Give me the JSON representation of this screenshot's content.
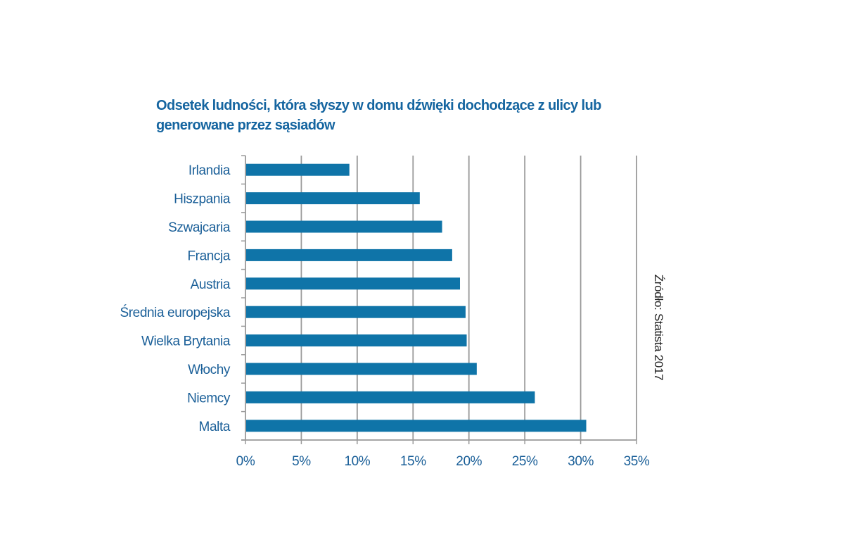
{
  "chart_data": {
    "type": "bar",
    "orientation": "horizontal",
    "title_lines": [
      "Odsetek ludności, która słyszy w domu dźwięki dochodzące z ulicy lub",
      "generowane przez sąsiadów"
    ],
    "categories": [
      "Irlandia",
      "Hiszpania",
      "Szwajcaria",
      "Francja",
      "Austria",
      "Średnia europejska",
      "Wielka Brytania",
      "Włochy",
      "Niemcy",
      "Malta"
    ],
    "values": [
      9.3,
      15.6,
      17.6,
      18.5,
      19.2,
      19.7,
      19.8,
      20.7,
      25.9,
      30.5
    ],
    "unit": "%",
    "xlim": [
      0,
      35
    ],
    "xticks": [
      0,
      5,
      10,
      15,
      20,
      25,
      30,
      35
    ],
    "xtick_labels": [
      "0%",
      "5%",
      "10%",
      "15%",
      "20%",
      "25%",
      "30%",
      "35%"
    ],
    "grid": "vertical",
    "xlabel": "",
    "ylabel": "",
    "bar_color": "#0f74a8",
    "grid_color": "#9a9a9a",
    "text_color": "#1a5f98",
    "source": "Źródło: Statista 2017"
  }
}
